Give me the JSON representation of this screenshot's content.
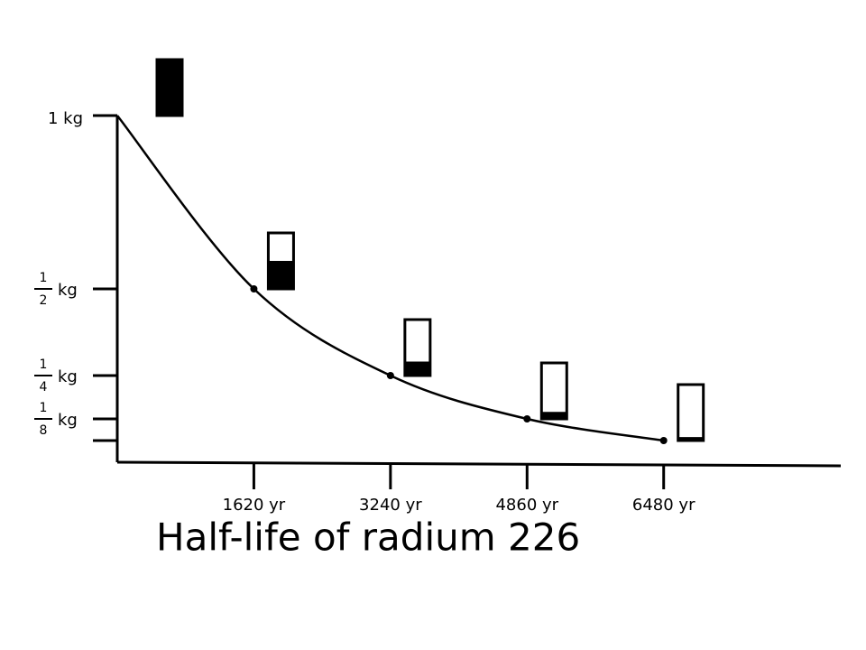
{
  "chart_data": {
    "type": "line",
    "title": "Half-life of radium 226",
    "x": [
      0,
      1620,
      3240,
      4860,
      6480
    ],
    "series": [
      {
        "values": [
          1,
          0.5,
          0.25,
          0.125,
          0.0625
        ],
        "color": "#000000"
      }
    ],
    "xlim": [
      0,
      8580
    ],
    "ylim": [
      0,
      1
    ],
    "xticks": [
      {
        "value": 1620,
        "label": "1620 yr"
      },
      {
        "value": 3240,
        "label": "3240 yr"
      },
      {
        "value": 4860,
        "label": "4860 yr"
      },
      {
        "value": 6480,
        "label": "6480 yr"
      }
    ],
    "yticks": [
      {
        "value": 1,
        "label": "1 kg"
      },
      {
        "value": 0.5,
        "label": {
          "numerator": "1",
          "denominator": "2",
          "unit": "kg"
        }
      },
      {
        "value": 0.25,
        "label": {
          "numerator": "1",
          "denominator": "4",
          "unit": "kg"
        }
      },
      {
        "value": 0.125,
        "label": {
          "numerator": "1",
          "denominator": "8",
          "unit": "kg"
        }
      },
      {
        "value": 0.0625,
        "label": null
      }
    ],
    "grid": false
  }
}
